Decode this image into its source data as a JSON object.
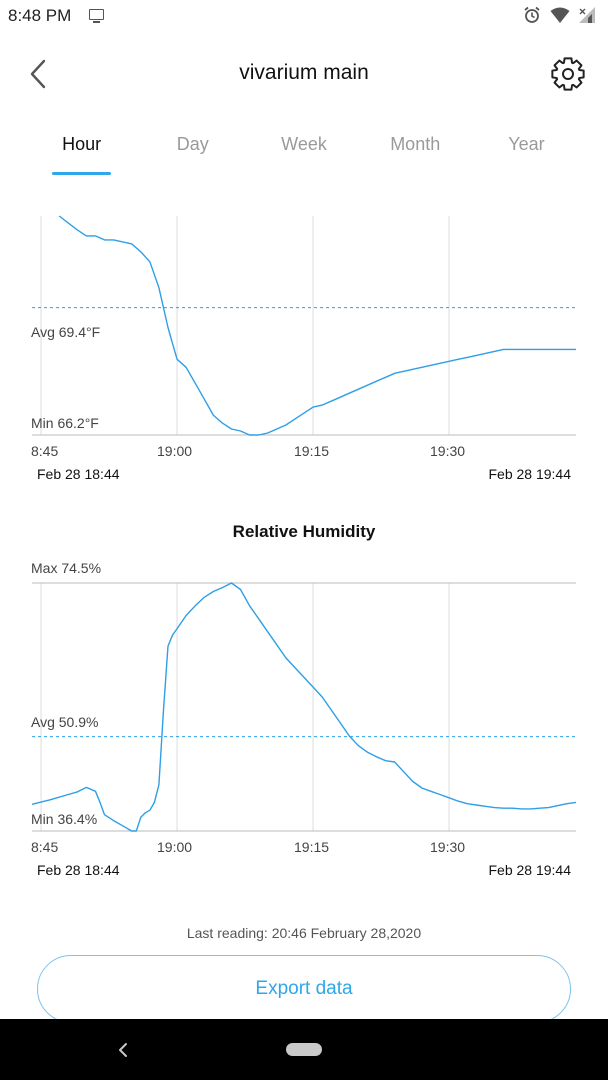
{
  "status_bar": {
    "time": "8:48 PM",
    "icons": [
      "cast-icon",
      "alarm-icon",
      "wifi-icon",
      "cellular-signal-icon"
    ]
  },
  "header": {
    "title": "vivarium main",
    "back_icon": "chevron-left-icon",
    "settings_icon": "gear-icon"
  },
  "tabs": [
    {
      "label": "Hour",
      "active": true
    },
    {
      "label": "Day",
      "active": false
    },
    {
      "label": "Week",
      "active": false
    },
    {
      "label": "Month",
      "active": false
    },
    {
      "label": "Year",
      "active": false
    }
  ],
  "colors": {
    "accent": "#2ea8ea",
    "line": "#2e9fe6",
    "grid": "#dddddd",
    "axis": "#bbbbbb"
  },
  "chart_data": [
    {
      "type": "line",
      "title": "",
      "avg_label": "Avg 69.4°F",
      "min_label": "Min 66.2°F",
      "avg_value": 69.4,
      "min_value": 66.2,
      "ylim": [
        66.2,
        71.7
      ],
      "x_ticks": [
        "8:45",
        "19:00",
        "19:15",
        "19:30"
      ],
      "x_tick_minutes": [
        1,
        16,
        31,
        46
      ],
      "date_start": "Feb 28 18:44",
      "date_end": "Feb 28 19:44",
      "series": [
        {
          "x": [
            3,
            5,
            6,
            7,
            8,
            9,
            11,
            12,
            13,
            14,
            15,
            15.5,
            16,
            17,
            18,
            19,
            20,
            21,
            22,
            23,
            24,
            25,
            26,
            27,
            28,
            29,
            30,
            31,
            32,
            33,
            34,
            35,
            36,
            37,
            38,
            39,
            40,
            41,
            42,
            43,
            44,
            45,
            46,
            47,
            48,
            49,
            50,
            51,
            52,
            53,
            55,
            57,
            60
          ],
          "y": [
            71.7,
            71.35,
            71.2,
            71.2,
            71.1,
            71.1,
            71.0,
            70.8,
            70.55,
            69.9,
            68.9,
            68.5,
            68.1,
            67.9,
            67.5,
            67.1,
            66.7,
            66.5,
            66.35,
            66.3,
            66.2,
            66.2,
            66.25,
            66.35,
            66.45,
            66.6,
            66.75,
            66.9,
            66.95,
            67.05,
            67.15,
            67.25,
            67.35,
            67.45,
            67.55,
            67.65,
            67.75,
            67.8,
            67.85,
            67.9,
            67.95,
            68.0,
            68.05,
            68.1,
            68.15,
            68.2,
            68.25,
            68.3,
            68.35,
            68.35,
            68.35,
            68.35,
            68.35
          ]
        }
      ]
    },
    {
      "type": "line",
      "title": "Relative Humidity",
      "max_label": "Max 74.5%",
      "avg_label": "Avg 50.9%",
      "min_label": "Min 36.4%",
      "max_value": 74.5,
      "avg_value": 50.9,
      "min_value": 36.4,
      "ylim": [
        36.4,
        74.5
      ],
      "x_ticks": [
        "8:45",
        "19:00",
        "19:15",
        "19:30"
      ],
      "x_tick_minutes": [
        1,
        16,
        31,
        46
      ],
      "date_start": "Feb 28 18:44",
      "date_end": "Feb 28 19:44",
      "series": [
        {
          "x": [
            0,
            2,
            4,
            5,
            6,
            7,
            7.5,
            8,
            9,
            10,
            11,
            11.5,
            12,
            12.5,
            13,
            13.5,
            14,
            14.5,
            15,
            15.5,
            16,
            17,
            18,
            19,
            20,
            21,
            22,
            23,
            24,
            25,
            26,
            27,
            28,
            29,
            30,
            31,
            32,
            33,
            34,
            35,
            36,
            37,
            38,
            39,
            40,
            41,
            42,
            43,
            44,
            45,
            46,
            47,
            48,
            49,
            50,
            51,
            52,
            53,
            54,
            55,
            56,
            57,
            58,
            59,
            60
          ],
          "y": [
            40.5,
            41.2,
            42.0,
            42.4,
            43.1,
            42.5,
            40.8,
            38.9,
            38.0,
            37.2,
            36.4,
            36.4,
            38.5,
            39.2,
            39.6,
            40.8,
            43.5,
            55.0,
            64.8,
            66.5,
            67.5,
            69.5,
            71.0,
            72.3,
            73.2,
            73.8,
            74.5,
            73.5,
            71.0,
            69.0,
            67.0,
            65.0,
            63.0,
            61.5,
            60.0,
            58.5,
            57.0,
            55.0,
            53.0,
            51.0,
            49.5,
            48.5,
            47.8,
            47.2,
            47.0,
            45.5,
            44.0,
            43.0,
            42.5,
            42.0,
            41.5,
            41.0,
            40.6,
            40.4,
            40.2,
            40.0,
            39.9,
            39.9,
            39.8,
            39.8,
            39.9,
            40.0,
            40.3,
            40.6,
            40.8
          ]
        }
      ]
    }
  ],
  "footer": {
    "last_reading": "Last reading: 20:46 February 28,2020",
    "export_label": "Export data"
  }
}
